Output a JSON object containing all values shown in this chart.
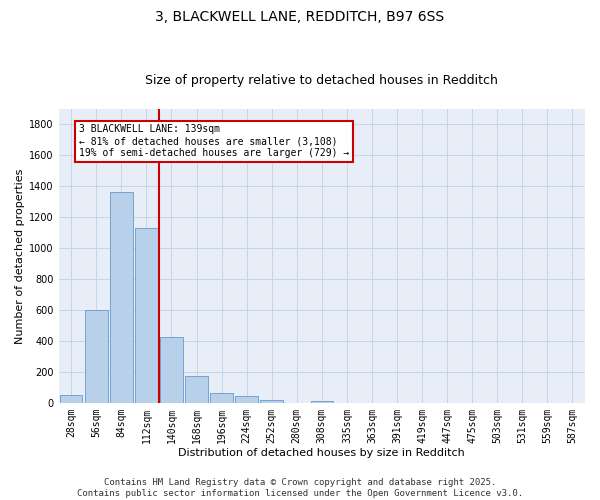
{
  "title_line1": "3, BLACKWELL LANE, REDDITCH, B97 6SS",
  "title_line2": "Size of property relative to detached houses in Redditch",
  "xlabel": "Distribution of detached houses by size in Redditch",
  "ylabel": "Number of detached properties",
  "bar_labels": [
    "28sqm",
    "56sqm",
    "84sqm",
    "112sqm",
    "140sqm",
    "168sqm",
    "196sqm",
    "224sqm",
    "252sqm",
    "280sqm",
    "308sqm",
    "335sqm",
    "363sqm",
    "391sqm",
    "419sqm",
    "447sqm",
    "475sqm",
    "503sqm",
    "531sqm",
    "559sqm",
    "587sqm"
  ],
  "bar_values": [
    55,
    605,
    1365,
    1130,
    430,
    175,
    65,
    45,
    20,
    0,
    15,
    0,
    0,
    0,
    0,
    0,
    0,
    0,
    0,
    0,
    0
  ],
  "bar_color": "#b8d0ea",
  "bar_edge_color": "#6699cc",
  "grid_color": "#c8d4e8",
  "background_color": "#e8eef8",
  "vline_color": "#cc0000",
  "vline_x_index": 4,
  "annotation_text": "3 BLACKWELL LANE: 139sqm\n← 81% of detached houses are smaller (3,108)\n19% of semi-detached houses are larger (729) →",
  "box_color": "#ffffff",
  "box_edge_color": "#cc0000",
  "ylim": [
    0,
    1900
  ],
  "yticks": [
    0,
    200,
    400,
    600,
    800,
    1000,
    1200,
    1400,
    1600,
    1800
  ],
  "footer_line1": "Contains HM Land Registry data © Crown copyright and database right 2025.",
  "footer_line2": "Contains public sector information licensed under the Open Government Licence v3.0.",
  "title_fontsize": 10,
  "subtitle_fontsize": 9,
  "axis_label_fontsize": 8,
  "tick_fontsize": 7,
  "annotation_fontsize": 7,
  "footer_fontsize": 6.5
}
